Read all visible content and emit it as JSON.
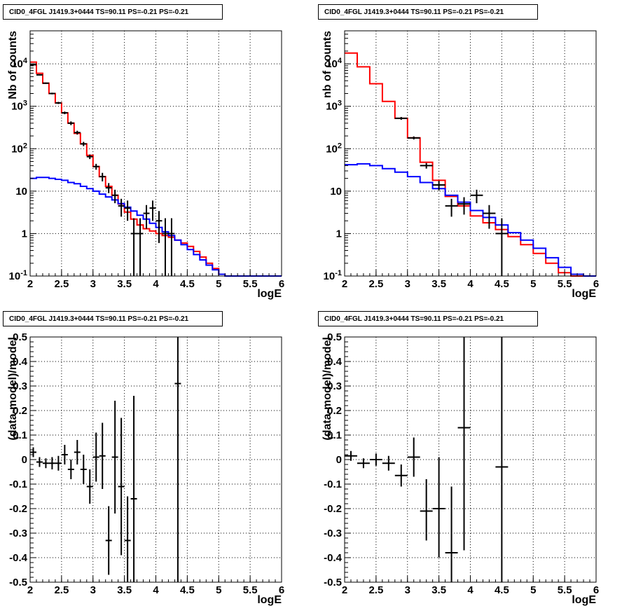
{
  "colors": {
    "total_model": "#ff0000",
    "source_model": "#0000ff",
    "data": "#000000",
    "grid": "#000000"
  },
  "panels": [
    {
      "id": "tl",
      "title": "CID0_4FGL J1419.3+0444 TS=90.11 PS=-0.21 PS=-0.21",
      "xlabel": "logE",
      "ylabel": "Nb of counts",
      "xlim": [
        2,
        6
      ],
      "yscale": "log",
      "ylim": [
        0.1,
        60000
      ],
      "x_ticks": [
        "2",
        "2.5",
        "3",
        "3.5",
        "4",
        "4.5",
        "5",
        "5.5",
        "6"
      ],
      "y_ticks": [
        "10^-1",
        "1",
        "10",
        "10^2",
        "10^3",
        "10^4"
      ]
    },
    {
      "id": "tr",
      "title": "CID0_4FGL J1419.3+0444 TS=90.11 PS=-0.21 PS=-0.21",
      "xlabel": "logE",
      "ylabel": "nb of counts",
      "xlim": [
        2,
        6
      ],
      "yscale": "log",
      "ylim": [
        0.1,
        60000
      ],
      "x_ticks": [
        "2",
        "2.5",
        "3",
        "3.5",
        "4",
        "4.5",
        "5",
        "5.5",
        "6"
      ],
      "y_ticks": [
        "10^-1",
        "1",
        "10",
        "10^2",
        "10^3",
        "10^4"
      ]
    },
    {
      "id": "bl",
      "title": "CID0_4FGL J1419.3+0444 TS=90.11 PS=-0.21 PS=-0.21",
      "xlabel": "logE",
      "ylabel": "(data-model)/model",
      "xlim": [
        2,
        6
      ],
      "yscale": "linear",
      "ylim": [
        -0.5,
        0.5
      ],
      "x_ticks": [
        "2",
        "2.5",
        "3",
        "3.5",
        "4",
        "4.5",
        "5",
        "5.5",
        "6"
      ],
      "y_ticks": [
        "-0.5",
        "-0.4",
        "-0.3",
        "-0.2",
        "-0.1",
        "0",
        "0.1",
        "0.2",
        "0.3",
        "0.4",
        "0.5"
      ]
    },
    {
      "id": "br",
      "title": "CID0_4FGL J1419.3+0444 TS=90.11 PS=-0.21 PS=-0.21",
      "xlabel": "logE",
      "ylabel": "(data-model)/model",
      "xlim": [
        2,
        6
      ],
      "yscale": "linear",
      "ylim": [
        -0.5,
        0.5
      ],
      "x_ticks": [
        "2",
        "2.5",
        "3",
        "3.5",
        "4",
        "4.5",
        "5",
        "5.5",
        "6"
      ],
      "y_ticks": [
        "-0.5",
        "-0.4",
        "-0.3",
        "-0.2",
        "-0.1",
        "0",
        "0.1",
        "0.2",
        "0.3",
        "0.4",
        "0.5"
      ]
    }
  ],
  "chart_data": [
    {
      "type": "line",
      "panel": "tl",
      "xlabel": "logE",
      "ylabel": "Nb of counts",
      "xlim": [
        2,
        6
      ],
      "ylim": [
        0.1,
        60000
      ],
      "yscale": "log",
      "grid": true,
      "series": [
        {
          "role": "total_model",
          "step": true,
          "bin_edges": [
            2.0,
            2.1,
            2.2,
            2.3,
            2.4,
            2.5,
            2.6,
            2.7,
            2.8,
            2.9,
            3.0,
            3.1,
            3.2,
            3.3,
            3.4,
            3.5,
            3.6,
            3.7,
            3.8,
            3.9,
            4.0,
            4.1,
            4.2,
            4.3,
            4.4,
            4.5,
            4.6,
            4.7,
            4.8,
            4.9,
            5.0,
            5.1,
            5.2,
            5.3,
            5.4,
            5.5,
            5.6,
            5.7,
            5.8,
            5.9,
            6.0
          ],
          "values": [
            11000,
            6000,
            3500,
            2000,
            1200,
            700,
            400,
            230,
            130,
            70,
            38,
            22,
            13,
            8,
            5,
            3.2,
            2.2,
            1.6,
            1.3,
            1.15,
            1.0,
            0.9,
            0.82,
            0.7,
            0.6,
            0.5,
            0.38,
            0.28,
            0.2,
            0.15,
            0.11,
            0.1,
            0.1,
            0.1,
            0.1,
            0.1,
            0.1,
            0.1,
            0.1,
            0.1
          ]
        },
        {
          "role": "source_model",
          "step": true,
          "bin_edges": [
            2.0,
            2.1,
            2.2,
            2.3,
            2.4,
            2.5,
            2.6,
            2.7,
            2.8,
            2.9,
            3.0,
            3.1,
            3.2,
            3.3,
            3.4,
            3.5,
            3.6,
            3.7,
            3.8,
            3.9,
            4.0,
            4.1,
            4.2,
            4.3,
            4.4,
            4.5,
            4.6,
            4.7,
            4.8,
            4.9,
            5.0,
            5.1,
            5.2,
            5.3,
            5.4,
            5.5,
            5.6,
            5.7,
            5.8,
            5.9,
            6.0
          ],
          "values": [
            20,
            21,
            21,
            20,
            19,
            18,
            16,
            15,
            13,
            11.5,
            10,
            8.5,
            7.3,
            6.2,
            5.1,
            4.2,
            3.4,
            2.7,
            2.2,
            1.75,
            1.4,
            1.1,
            0.9,
            0.7,
            0.55,
            0.42,
            0.32,
            0.24,
            0.18,
            0.14,
            0.11,
            0.1,
            0.1,
            0.1,
            0.1,
            0.1,
            0.1,
            0.1,
            0.1,
            0.1
          ]
        },
        {
          "role": "data",
          "errorbars": true,
          "points": [
            {
              "x": 2.05,
              "y": 9500,
              "xerr": 0.05,
              "ylo": 9300,
              "yhi": 9700
            },
            {
              "x": 2.15,
              "y": 5500,
              "xerr": 0.05,
              "ylo": 5350,
              "yhi": 5650
            },
            {
              "x": 2.25,
              "y": 3500,
              "xerr": 0.05,
              "ylo": 3380,
              "yhi": 3620
            },
            {
              "x": 2.35,
              "y": 2000,
              "xerr": 0.05,
              "ylo": 1910,
              "yhi": 2090
            },
            {
              "x": 2.45,
              "y": 1200,
              "xerr": 0.05,
              "ylo": 1130,
              "yhi": 1270
            },
            {
              "x": 2.55,
              "y": 700,
              "xerr": 0.05,
              "ylo": 650,
              "yhi": 750
            },
            {
              "x": 2.65,
              "y": 400,
              "xerr": 0.05,
              "ylo": 360,
              "yhi": 440
            },
            {
              "x": 2.75,
              "y": 240,
              "xerr": 0.05,
              "ylo": 215,
              "yhi": 265
            },
            {
              "x": 2.85,
              "y": 130,
              "xerr": 0.05,
              "ylo": 115,
              "yhi": 145
            },
            {
              "x": 2.95,
              "y": 65,
              "xerr": 0.05,
              "ylo": 57,
              "yhi": 73
            },
            {
              "x": 3.05,
              "y": 38,
              "xerr": 0.05,
              "ylo": 32,
              "yhi": 44
            },
            {
              "x": 3.15,
              "y": 22,
              "xerr": 0.05,
              "ylo": 17,
              "yhi": 27
            },
            {
              "x": 3.25,
              "y": 12,
              "xerr": 0.05,
              "ylo": 9,
              "yhi": 15.5
            },
            {
              "x": 3.35,
              "y": 8,
              "xerr": 0.05,
              "ylo": 5.2,
              "yhi": 10.8
            },
            {
              "x": 3.45,
              "y": 4.5,
              "xerr": 0.05,
              "ylo": 2.5,
              "yhi": 6.6
            },
            {
              "x": 3.55,
              "y": 4,
              "xerr": 0.05,
              "ylo": 2.0,
              "yhi": 6.0
            },
            {
              "x": 3.65,
              "y": 1,
              "xerr": 0.05,
              "ylo": 0.1,
              "yhi": 2.3
            },
            {
              "x": 3.75,
              "y": 1,
              "xerr": 0.05,
              "ylo": 0.1,
              "yhi": 2.3
            },
            {
              "x": 3.85,
              "y": 3,
              "xerr": 0.05,
              "ylo": 1.3,
              "yhi": 4.7
            },
            {
              "x": 3.95,
              "y": 4,
              "xerr": 0.05,
              "ylo": 2.0,
              "yhi": 6.0
            },
            {
              "x": 4.05,
              "y": 2,
              "xerr": 0.05,
              "ylo": 0.6,
              "yhi": 3.4
            },
            {
              "x": 4.15,
              "y": 1,
              "xerr": 0.05,
              "ylo": 0.1,
              "yhi": 2.3
            },
            {
              "x": 4.25,
              "y": 1,
              "xerr": 0.05,
              "ylo": 0.1,
              "yhi": 2.3
            }
          ]
        }
      ]
    },
    {
      "type": "line",
      "panel": "tr",
      "xlabel": "logE",
      "ylabel": "nb of counts",
      "xlim": [
        2,
        6
      ],
      "ylim": [
        0.1,
        60000
      ],
      "yscale": "log",
      "grid": true,
      "series": [
        {
          "role": "total_model",
          "step": true,
          "bin_edges": [
            2.0,
            2.2,
            2.4,
            2.6,
            2.8,
            3.0,
            3.2,
            3.4,
            3.6,
            3.8,
            4.0,
            4.2,
            4.4,
            4.6,
            4.8,
            5.0,
            5.2,
            5.4,
            5.6,
            5.8,
            6.0
          ],
          "values": [
            18000,
            8500,
            3400,
            1300,
            520,
            180,
            48,
            18,
            7.5,
            4.5,
            2.6,
            1.8,
            1.25,
            0.85,
            0.55,
            0.34,
            0.2,
            0.12,
            0.1,
            0.1
          ]
        },
        {
          "role": "source_model",
          "step": true,
          "bin_edges": [
            2.0,
            2.2,
            2.4,
            2.6,
            2.8,
            3.0,
            3.2,
            3.4,
            3.6,
            3.8,
            4.0,
            4.2,
            4.4,
            4.6,
            4.8,
            5.0,
            5.2,
            5.4,
            5.6,
            5.8,
            6.0
          ],
          "values": [
            42,
            44,
            40,
            34,
            28,
            22,
            16,
            11.5,
            8,
            5.5,
            3.5,
            2.4,
            1.6,
            1.05,
            0.7,
            0.45,
            0.27,
            0.16,
            0.11,
            0.1
          ]
        },
        {
          "role": "data",
          "errorbars": true,
          "points": [
            {
              "x": 2.9,
              "y": 520,
              "xerr": 0.1,
              "ylo": 480,
              "yhi": 560
            },
            {
              "x": 3.1,
              "y": 180,
              "xerr": 0.1,
              "ylo": 165,
              "yhi": 195
            },
            {
              "x": 3.3,
              "y": 40,
              "xerr": 0.1,
              "ylo": 34,
              "yhi": 46
            },
            {
              "x": 3.5,
              "y": 14,
              "xerr": 0.1,
              "ylo": 10.5,
              "yhi": 17.5
            },
            {
              "x": 3.7,
              "y": 4.5,
              "xerr": 0.1,
              "ylo": 2.5,
              "yhi": 6.6
            },
            {
              "x": 3.9,
              "y": 5,
              "xerr": 0.1,
              "ylo": 2.8,
              "yhi": 7.2
            },
            {
              "x": 4.1,
              "y": 8,
              "xerr": 0.1,
              "ylo": 5.2,
              "yhi": 10.8
            },
            {
              "x": 4.3,
              "y": 3,
              "xerr": 0.1,
              "ylo": 1.3,
              "yhi": 4.7
            },
            {
              "x": 4.5,
              "y": 1,
              "xerr": 0.1,
              "ylo": 0.1,
              "yhi": 2.3
            }
          ]
        }
      ]
    },
    {
      "type": "scatter",
      "panel": "bl",
      "xlabel": "logE",
      "ylabel": "(data-model)/model",
      "xlim": [
        2,
        6
      ],
      "ylim": [
        -0.5,
        0.5
      ],
      "grid": true,
      "series": [
        {
          "role": "data",
          "errorbars": true,
          "points": [
            {
              "x": 2.05,
              "y": 0.03,
              "xerr": 0.05,
              "ylo": 0.01,
              "yhi": 0.05
            },
            {
              "x": 2.15,
              "y": -0.01,
              "xerr": 0.05,
              "ylo": -0.03,
              "yhi": 0.01
            },
            {
              "x": 2.25,
              "y": -0.015,
              "xerr": 0.05,
              "ylo": -0.035,
              "yhi": 0.005
            },
            {
              "x": 2.35,
              "y": -0.015,
              "xerr": 0.05,
              "ylo": -0.04,
              "yhi": 0.01
            },
            {
              "x": 2.45,
              "y": -0.015,
              "xerr": 0.05,
              "ylo": -0.045,
              "yhi": 0.015
            },
            {
              "x": 2.55,
              "y": 0.02,
              "xerr": 0.05,
              "ylo": -0.02,
              "yhi": 0.06
            },
            {
              "x": 2.65,
              "y": -0.04,
              "xerr": 0.05,
              "ylo": -0.08,
              "yhi": 0.0
            },
            {
              "x": 2.75,
              "y": 0.03,
              "xerr": 0.05,
              "ylo": -0.02,
              "yhi": 0.08
            },
            {
              "x": 2.85,
              "y": -0.04,
              "xerr": 0.05,
              "ylo": -0.1,
              "yhi": 0.02
            },
            {
              "x": 2.95,
              "y": -0.11,
              "xerr": 0.05,
              "ylo": -0.18,
              "yhi": -0.04
            },
            {
              "x": 3.05,
              "y": 0.01,
              "xerr": 0.05,
              "ylo": -0.09,
              "yhi": 0.11
            },
            {
              "x": 3.15,
              "y": 0.015,
              "xerr": 0.05,
              "ylo": -0.12,
              "yhi": 0.15
            },
            {
              "x": 3.25,
              "y": -0.33,
              "xerr": 0.05,
              "ylo": -0.47,
              "yhi": -0.19
            },
            {
              "x": 3.35,
              "y": 0.01,
              "xerr": 0.05,
              "ylo": -0.22,
              "yhi": 0.24
            },
            {
              "x": 3.45,
              "y": -0.11,
              "xerr": 0.05,
              "ylo": -0.39,
              "yhi": 0.17
            },
            {
              "x": 3.55,
              "y": -0.33,
              "xerr": 0.05,
              "ylo": -0.5,
              "yhi": -0.15
            },
            {
              "x": 3.65,
              "y": -0.16,
              "xerr": 0.05,
              "ylo": -0.5,
              "yhi": 0.26
            },
            {
              "x": 4.35,
              "y": 0.31,
              "xerr": 0.05,
              "ylo": -0.5,
              "yhi": 0.5
            }
          ]
        }
      ]
    },
    {
      "type": "scatter",
      "panel": "br",
      "xlabel": "logE",
      "ylabel": "(data-model)/model",
      "xlim": [
        2,
        6
      ],
      "ylim": [
        -0.5,
        0.5
      ],
      "grid": true,
      "series": [
        {
          "role": "data",
          "errorbars": true,
          "points": [
            {
              "x": 2.1,
              "y": 0.015,
              "xerr": 0.1,
              "ylo": -0.005,
              "yhi": 0.035
            },
            {
              "x": 2.3,
              "y": -0.015,
              "xerr": 0.1,
              "ylo": -0.035,
              "yhi": 0.005
            },
            {
              "x": 2.5,
              "y": 0.0,
              "xerr": 0.1,
              "ylo": -0.025,
              "yhi": 0.025
            },
            {
              "x": 2.7,
              "y": -0.015,
              "xerr": 0.1,
              "ylo": -0.045,
              "yhi": 0.015
            },
            {
              "x": 2.9,
              "y": -0.065,
              "xerr": 0.1,
              "ylo": -0.11,
              "yhi": -0.02
            },
            {
              "x": 3.1,
              "y": 0.01,
              "xerr": 0.1,
              "ylo": -0.07,
              "yhi": 0.09
            },
            {
              "x": 3.3,
              "y": -0.21,
              "xerr": 0.1,
              "ylo": -0.33,
              "yhi": -0.08
            },
            {
              "x": 3.5,
              "y": -0.2,
              "xerr": 0.1,
              "ylo": -0.4,
              "yhi": 0.01
            },
            {
              "x": 3.7,
              "y": -0.38,
              "xerr": 0.1,
              "ylo": -0.5,
              "yhi": -0.11
            },
            {
              "x": 3.9,
              "y": 0.13,
              "xerr": 0.1,
              "ylo": -0.37,
              "yhi": 0.5
            },
            {
              "x": 4.5,
              "y": -0.03,
              "xerr": 0.1,
              "ylo": -0.5,
              "yhi": 0.5
            }
          ]
        }
      ]
    }
  ]
}
